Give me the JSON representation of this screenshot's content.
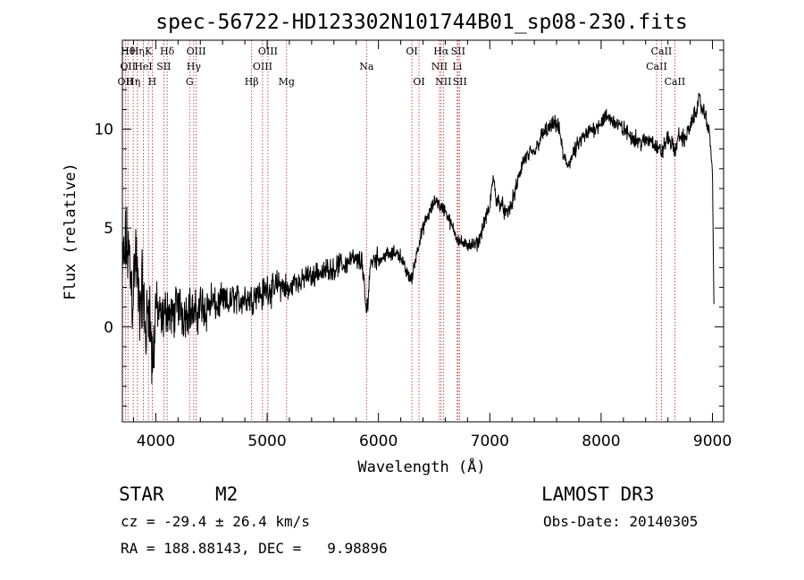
{
  "chart_data": {
    "type": "line",
    "title": "spec-56722-HD123302N101744B01_sp08-230.fits",
    "xlabel": "Wavelength (Å)",
    "ylabel": "Flux (relative)",
    "xlim": [
      3700,
      9100
    ],
    "ylim": [
      -4.8,
      14.5
    ],
    "x_ticks": [
      4000,
      5000,
      6000,
      7000,
      8000,
      9000
    ],
    "y_ticks": [
      0,
      5,
      10
    ],
    "grid": false,
    "spectrum_anchors": [
      [
        3700,
        2.5
      ],
      [
        3730,
        4.2
      ],
      [
        3760,
        3.6
      ],
      [
        3790,
        1.5
      ],
      [
        3820,
        3.8
      ],
      [
        3850,
        0.8
      ],
      [
        3880,
        2.0
      ],
      [
        3910,
        -0.5
      ],
      [
        3940,
        1.6
      ],
      [
        3970,
        -2.3
      ],
      [
        4000,
        1.2
      ],
      [
        4050,
        0.2
      ],
      [
        4100,
        1.0
      ],
      [
        4150,
        0.4
      ],
      [
        4200,
        1.2
      ],
      [
        4250,
        0.6
      ],
      [
        4300,
        1.0
      ],
      [
        4350,
        0.5
      ],
      [
        4400,
        1.1
      ],
      [
        4450,
        0.9
      ],
      [
        4500,
        1.3
      ],
      [
        4550,
        1.0
      ],
      [
        4600,
        1.4
      ],
      [
        4650,
        1.1
      ],
      [
        4700,
        1.5
      ],
      [
        4750,
        1.3
      ],
      [
        4800,
        1.5
      ],
      [
        4860,
        1.4
      ],
      [
        4900,
        1.8
      ],
      [
        4950,
        1.6
      ],
      [
        5000,
        2.0
      ],
      [
        5050,
        1.8
      ],
      [
        5100,
        2.2
      ],
      [
        5150,
        2.0
      ],
      [
        5200,
        1.8
      ],
      [
        5250,
        2.4
      ],
      [
        5300,
        2.2
      ],
      [
        5350,
        2.6
      ],
      [
        5400,
        2.5
      ],
      [
        5450,
        2.8
      ],
      [
        5500,
        2.7
      ],
      [
        5550,
        3.0
      ],
      [
        5600,
        2.9
      ],
      [
        5650,
        3.2
      ],
      [
        5700,
        3.1
      ],
      [
        5750,
        3.5
      ],
      [
        5800,
        3.3
      ],
      [
        5850,
        3.4
      ],
      [
        5893,
        0.6
      ],
      [
        5930,
        3.3
      ],
      [
        5980,
        3.5
      ],
      [
        6020,
        3.4
      ],
      [
        6070,
        3.7
      ],
      [
        6110,
        3.6
      ],
      [
        6150,
        3.8
      ],
      [
        6200,
        3.6
      ],
      [
        6240,
        2.9
      ],
      [
        6270,
        2.6
      ],
      [
        6300,
        2.4
      ],
      [
        6330,
        3.4
      ],
      [
        6370,
        4.4
      ],
      [
        6420,
        5.3
      ],
      [
        6470,
        5.9
      ],
      [
        6520,
        6.5
      ],
      [
        6550,
        6.1
      ],
      [
        6600,
        5.9
      ],
      [
        6650,
        5.2
      ],
      [
        6700,
        4.6
      ],
      [
        6740,
        4.3
      ],
      [
        6780,
        4.1
      ],
      [
        6820,
        4.2
      ],
      [
        6860,
        4.1
      ],
      [
        6900,
        4.3
      ],
      [
        6950,
        5.3
      ],
      [
        7000,
        6.0
      ],
      [
        7030,
        7.6
      ],
      [
        7060,
        6.4
      ],
      [
        7100,
        6.3
      ],
      [
        7150,
        5.6
      ],
      [
        7200,
        6.3
      ],
      [
        7250,
        7.3
      ],
      [
        7300,
        8.4
      ],
      [
        7350,
        8.7
      ],
      [
        7400,
        8.8
      ],
      [
        7450,
        9.5
      ],
      [
        7500,
        9.9
      ],
      [
        7550,
        10.1
      ],
      [
        7600,
        10.3
      ],
      [
        7630,
        9.8
      ],
      [
        7660,
        8.6
      ],
      [
        7700,
        8.2
      ],
      [
        7750,
        8.7
      ],
      [
        7800,
        9.3
      ],
      [
        7850,
        9.6
      ],
      [
        7900,
        9.9
      ],
      [
        7950,
        10.1
      ],
      [
        8000,
        10.4
      ],
      [
        8050,
        10.6
      ],
      [
        8100,
        10.5
      ],
      [
        8150,
        10.2
      ],
      [
        8200,
        10.0
      ],
      [
        8250,
        9.7
      ],
      [
        8300,
        9.6
      ],
      [
        8350,
        9.3
      ],
      [
        8400,
        9.4
      ],
      [
        8450,
        9.5
      ],
      [
        8498,
        9.1
      ],
      [
        8542,
        8.8
      ],
      [
        8600,
        9.6
      ],
      [
        8662,
        8.9
      ],
      [
        8700,
        9.7
      ],
      [
        8750,
        9.5
      ],
      [
        8800,
        10.1
      ],
      [
        8850,
        10.9
      ],
      [
        8880,
        11.5
      ],
      [
        8910,
        11.0
      ],
      [
        8950,
        10.5
      ],
      [
        8980,
        9.4
      ],
      [
        9000,
        7.8
      ],
      [
        9010,
        2.6
      ],
      [
        9015,
        0.0
      ]
    ],
    "reference_lines": [
      {
        "x": 3727,
        "rows": [
          {
            "label": "OII",
            "row": 3
          }
        ]
      },
      {
        "x": 3750,
        "rows": [
          {
            "label": "Hθ",
            "row": 1
          },
          {
            "label": "OII",
            "row": 2
          }
        ]
      },
      {
        "x": 3797,
        "rows": [
          {
            "label": "Hη",
            "row": 3
          }
        ]
      },
      {
        "x": 3835,
        "rows": [
          {
            "label": "Hη",
            "row": 1
          }
        ]
      },
      {
        "x": 3889,
        "rows": [
          {
            "label": "HeI",
            "row": 2
          }
        ]
      },
      {
        "x": 3934,
        "rows": [
          {
            "label": "K",
            "row": 1
          }
        ]
      },
      {
        "x": 3968,
        "rows": [
          {
            "label": "H",
            "row": 3
          }
        ]
      },
      {
        "x": 4072,
        "rows": [
          {
            "label": "SII",
            "row": 2
          }
        ]
      },
      {
        "x": 4102,
        "rows": [
          {
            "label": "Hδ",
            "row": 1
          }
        ]
      },
      {
        "x": 4304,
        "rows": [
          {
            "label": "G",
            "row": 3
          }
        ]
      },
      {
        "x": 4341,
        "rows": [
          {
            "label": "Hγ",
            "row": 2
          }
        ]
      },
      {
        "x": 4363,
        "rows": [
          {
            "label": "OIII",
            "row": 1
          }
        ]
      },
      {
        "x": 4861,
        "rows": [
          {
            "label": "Hβ",
            "row": 3
          }
        ]
      },
      {
        "x": 4959,
        "rows": [
          {
            "label": "OIII",
            "row": 2
          }
        ]
      },
      {
        "x": 5007,
        "rows": [
          {
            "label": "OIII",
            "row": 1
          }
        ]
      },
      {
        "x": 5175,
        "rows": [
          {
            "label": "Mg",
            "row": 3
          }
        ]
      },
      {
        "x": 5893,
        "rows": [
          {
            "label": "Na",
            "row": 2
          }
        ]
      },
      {
        "x": 6300,
        "rows": [
          {
            "label": "OI",
            "row": 1
          }
        ]
      },
      {
        "x": 6364,
        "rows": [
          {
            "label": "OI",
            "row": 3
          }
        ]
      },
      {
        "x": 6548,
        "rows": [
          {
            "label": "NII",
            "row": 2
          }
        ]
      },
      {
        "x": 6563,
        "rows": [
          {
            "label": "Hα",
            "row": 1
          }
        ]
      },
      {
        "x": 6583,
        "rows": [
          {
            "label": "NII",
            "row": 3
          }
        ]
      },
      {
        "x": 6708,
        "rows": [
          {
            "label": "Li",
            "row": 2
          }
        ]
      },
      {
        "x": 6716,
        "rows": [
          {
            "label": "SII",
            "row": 1
          }
        ]
      },
      {
        "x": 6731,
        "rows": [
          {
            "label": "SII",
            "row": 3
          }
        ]
      },
      {
        "x": 8498,
        "rows": [
          {
            "label": "CaII",
            "row": 2
          }
        ]
      },
      {
        "x": 8542,
        "rows": [
          {
            "label": "CaII",
            "row": 1
          }
        ]
      },
      {
        "x": 8662,
        "rows": [
          {
            "label": "CaII",
            "row": 3
          }
        ]
      }
    ],
    "colors": {
      "spectrum": "#000000",
      "reference_line": "#b22222",
      "axis": "#000000"
    }
  },
  "info": {
    "object_type": "STAR",
    "subclass": "M2",
    "survey": "LAMOST DR3",
    "redshift_line": "cz = -29.4 ± 26.4 km/s",
    "obs_date_line": "Obs-Date: 20140305",
    "coords_line": "RA = 188.88143, DEC =   9.98896"
  }
}
